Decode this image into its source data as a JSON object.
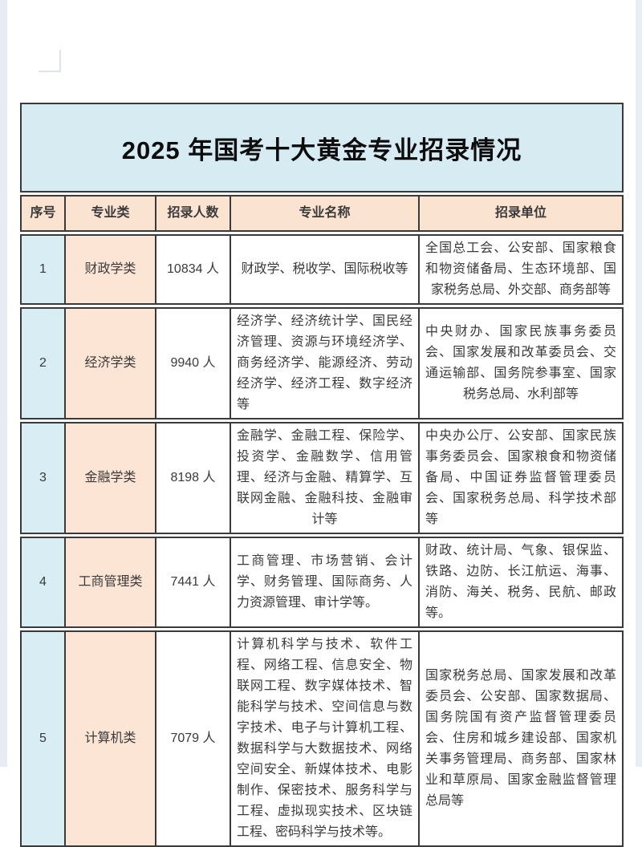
{
  "title": "2025 年国考十大黄金专业招录情况",
  "table": {
    "headers": {
      "no": "序号",
      "category": "专业类",
      "count": "招录人数",
      "majors": "专业名称",
      "units": "招录单位"
    },
    "rows": [
      {
        "no": "1",
        "category": "财政学类",
        "count": "10834 人",
        "majors": "财政学、税收学、国际税收等",
        "units": "全国总工会、公安部、国家粮食和物资储备局、生态环境部、国家税务总局、外交部、商务部等"
      },
      {
        "no": "2",
        "category": "经济学类",
        "count": "9940 人",
        "majors": "经济学、经济统计学、国民经济管理、资源与环境经济学、商务经济学、能源经济、劳动经济学、经济工程、数字经济等",
        "units": "中央财办、国家民族事务委员会、国家发展和改革委员会、交通运输部、国务院参事室、国家税务总局、水利部等"
      },
      {
        "no": "3",
        "category": "金融学类",
        "count": "8198 人",
        "majors": "金融学、金融工程、保险学、投资学、金融数学、信用管理、经济与金融、精算学、互联网金融、金融科技、金融审计等",
        "units": "中央办公厅、公安部、国家民族事务委员会、国家粮食和物资储备局、中国证券监督管理委员会、国家税务总局、科学技术部等"
      },
      {
        "no": "4",
        "category": "工商管理类",
        "count": "7441 人",
        "majors": "工商管理、市场营销、会计学、财务管理、国际商务、人力资源管理、审计学等。",
        "units": "财政、统计局、气象、银保监、铁路、边防、长江航运、海事、消防、海关、税务、民航、邮政等。"
      },
      {
        "no": "5",
        "category": "计算机类",
        "count": "7079 人",
        "majors": "计算机科学与技术、软件工程、网络工程、信息安全、物联网工程、数字媒体技术、智能科学与技术、空间信息与数字技术、电子与计算机工程、数据科学与大数据技术、网络空间安全、新媒体技术、电影制作、保密技术、服务科学与工程、虚拟现实技术、区块链工程、密码科学与技术等。",
        "units": "国家税务总局、国家发展和改革委员会、公安部、国家数据局、国务院国有资产监督管理委员会、住房和城乡建设部、国家机关事务管理局、商务部、国家林业和草原局、国家金融监督管理总局等"
      }
    ]
  },
  "colors": {
    "title_band_bg": "#d7ebf3",
    "header_bg": "#fbe3d1",
    "no_col_bg": "#d9edf5",
    "category_col_bg": "#fce5d5",
    "border_col": "#3a3a3a"
  }
}
